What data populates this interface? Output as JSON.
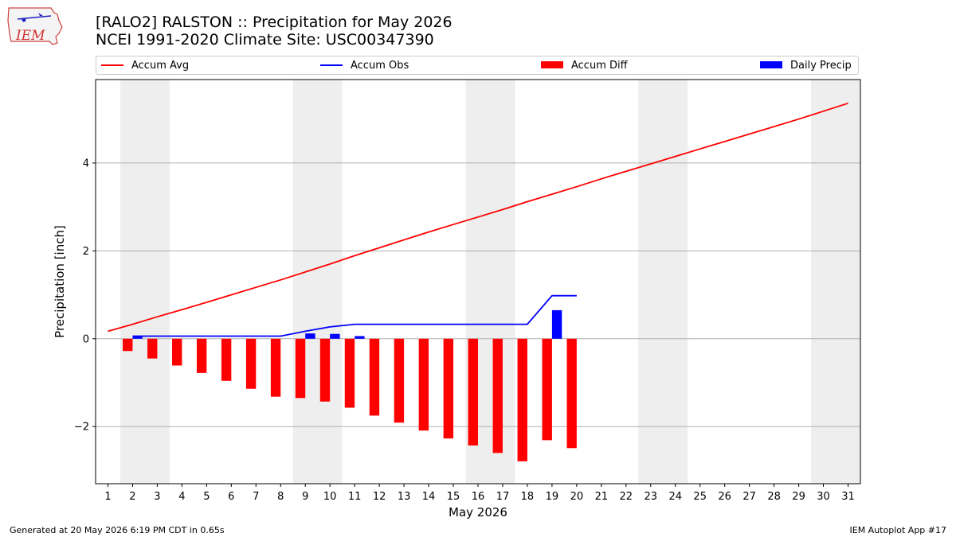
{
  "header": {
    "title_line1": "[RALO2] RALSTON :: Precipitation for May 2026",
    "title_line2": "NCEI 1991-2020 Climate Site: USC00347390",
    "logo_text": "IEM"
  },
  "legend": {
    "accum_avg": "Accum Avg",
    "accum_obs": "Accum Obs",
    "accum_diff": "Accum Diff",
    "daily_precip": "Daily Precip"
  },
  "colors": {
    "accum_avg": "#ff0000",
    "accum_obs": "#0000ff",
    "accum_diff": "#ff0000",
    "daily_precip": "#0000ff",
    "weekend_shade": "#eeeeee",
    "grid": "#b0b0b0"
  },
  "footer": {
    "generated": "Generated at 20 May 2026 6:19 PM CDT in 0.65s",
    "app": "IEM Autoplot App #17"
  },
  "chart_data": {
    "type": "bar",
    "xlabel": "May 2026",
    "ylabel": "Precipitation [inch]",
    "xlim": [
      0.5,
      31.5
    ],
    "ylim": [
      -3.3,
      5.9
    ],
    "yticks": [
      -2,
      0,
      2,
      4
    ],
    "x_ticks": [
      1,
      2,
      3,
      4,
      5,
      6,
      7,
      8,
      9,
      10,
      11,
      12,
      13,
      14,
      15,
      16,
      17,
      18,
      19,
      20,
      21,
      22,
      23,
      24,
      25,
      26,
      27,
      28,
      29,
      30,
      31
    ],
    "grid": "horizontal",
    "legend_position": "top",
    "shaded_weekends": [
      [
        2,
        3
      ],
      [
        9,
        10
      ],
      [
        16,
        17
      ],
      [
        23,
        24
      ],
      [
        30,
        31
      ]
    ],
    "series": [
      {
        "name": "Accum Avg",
        "kind": "line",
        "x": [
          1,
          2,
          3,
          4,
          5,
          6,
          7,
          8,
          9,
          10,
          11,
          12,
          13,
          14,
          15,
          16,
          17,
          18,
          19,
          20,
          21,
          22,
          23,
          24,
          25,
          26,
          27,
          28,
          29,
          30,
          31
        ],
        "values": [
          0.17,
          0.33,
          0.5,
          0.66,
          0.83,
          1.0,
          1.17,
          1.34,
          1.52,
          1.7,
          1.89,
          2.07,
          2.25,
          2.43,
          2.6,
          2.77,
          2.94,
          3.12,
          3.29,
          3.46,
          3.64,
          3.81,
          3.98,
          4.15,
          4.32,
          4.49,
          4.66,
          4.83,
          5.0,
          5.18,
          5.36
        ]
      },
      {
        "name": "Accum Obs",
        "kind": "line",
        "x": [
          2,
          3,
          4,
          5,
          6,
          7,
          8,
          9,
          10,
          11,
          12,
          13,
          14,
          15,
          16,
          17,
          18,
          19,
          20
        ],
        "values": [
          0.06,
          0.06,
          0.06,
          0.06,
          0.06,
          0.06,
          0.06,
          0.17,
          0.27,
          0.33,
          0.33,
          0.33,
          0.33,
          0.33,
          0.33,
          0.33,
          0.33,
          0.98,
          0.98
        ]
      },
      {
        "name": "Accum Diff",
        "kind": "bar",
        "x": [
          2,
          3,
          4,
          5,
          6,
          7,
          8,
          9,
          10,
          11,
          12,
          13,
          14,
          15,
          16,
          17,
          18,
          19,
          20
        ],
        "values": [
          -0.28,
          -0.45,
          -0.61,
          -0.78,
          -0.96,
          -1.14,
          -1.32,
          -1.35,
          -1.43,
          -1.57,
          -1.75,
          -1.91,
          -2.09,
          -2.27,
          -2.43,
          -2.6,
          -2.79,
          -2.31,
          -2.49
        ]
      },
      {
        "name": "Daily Precip",
        "kind": "bar",
        "x": [
          2,
          3,
          4,
          5,
          6,
          7,
          8,
          9,
          10,
          11,
          12,
          13,
          14,
          15,
          16,
          17,
          18,
          19,
          20
        ],
        "values": [
          0.06,
          0,
          0,
          0,
          0,
          0,
          0,
          0.12,
          0.11,
          0.06,
          0,
          0,
          0,
          0,
          0,
          0,
          0,
          0.65,
          0
        ]
      }
    ]
  }
}
